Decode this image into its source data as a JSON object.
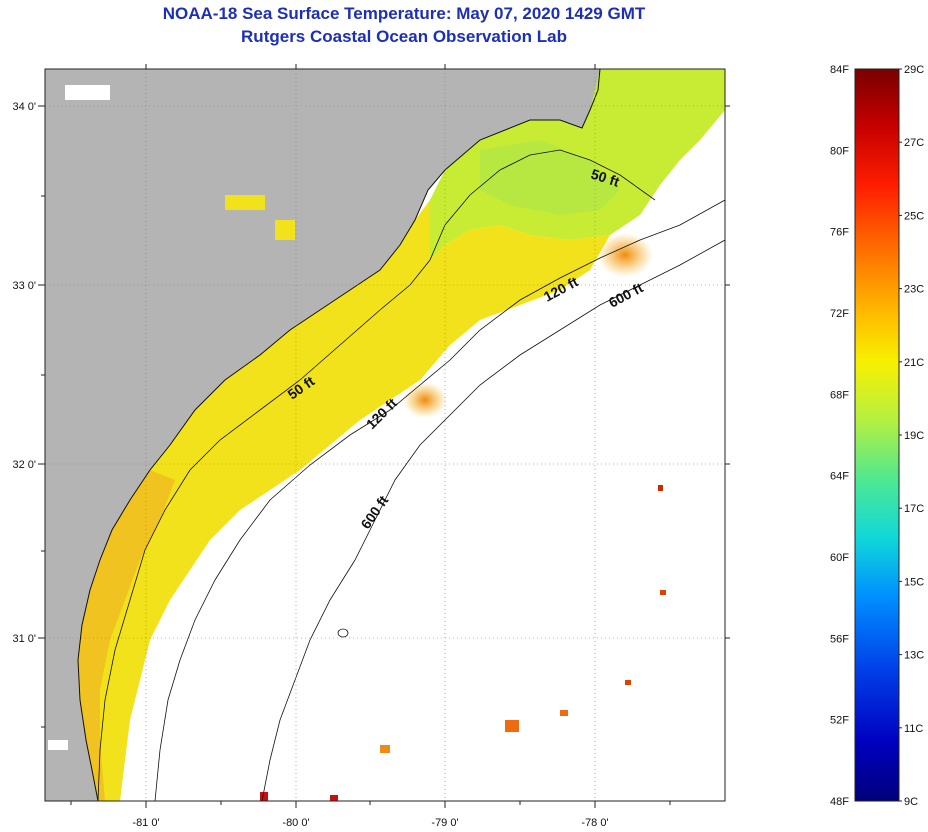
{
  "header": {
    "title": "NOAA-18 Sea Surface Temperature:  May 07, 2020 1429 GMT",
    "subtitle": "Rutgers Coastal Ocean Observation Lab"
  },
  "map": {
    "lat_ticks": [
      "34 0'",
      "33 0'",
      "32 0'",
      "31 0'"
    ],
    "lon_ticks": [
      "-81 0'",
      "-80 0'",
      "-79 0'",
      "-78 0'"
    ],
    "depth_contours": [
      "50 ft",
      "120 ft",
      "600 ft",
      "50 ft",
      "120 ft",
      "600 ft"
    ]
  },
  "colorbar": {
    "fahrenheit_labels": [
      "84F",
      "80F",
      "76F",
      "72F",
      "68F",
      "64F",
      "60F",
      "56F",
      "52F",
      "48F"
    ],
    "celsius_labels": [
      "29C",
      "27C",
      "25C",
      "23C",
      "21C",
      "19C",
      "17C",
      "15C",
      "13C",
      "11C",
      "9C"
    ],
    "colors": [
      "#7a0000",
      "#d40000",
      "#ff3000",
      "#ff8a00",
      "#ffd200",
      "#f4f400",
      "#b8f040",
      "#60e890",
      "#10d0d8",
      "#0090ff",
      "#0040e0",
      "#0000b0",
      "#00007a"
    ]
  },
  "colors": {
    "title": "#1c2fb8",
    "land": "#b4b4b4",
    "ocean_nodata": "#ffffff"
  }
}
